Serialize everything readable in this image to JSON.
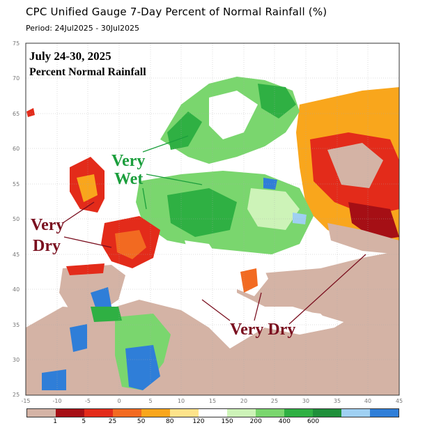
{
  "header": {
    "title": "CPC Unified Gauge 7-Day Percent of Normal Rainfall (%)",
    "period": "Period: 24Jul2025 - 30Jul2025"
  },
  "map": {
    "inset_title_line1": "July 24-30, 2025",
    "inset_title_line2": "Percent Normal Rainfall",
    "annotations": {
      "very_wet_1": "Very",
      "very_wet_2": "Wet",
      "very_dry_left_1": "Very",
      "very_dry_left_2": "Dry",
      "very_dry_bottom": "Very Dry"
    },
    "annotation_colors": {
      "wet": "#1b9e3c",
      "dry": "#7a0f1f"
    },
    "lon_ticks": [
      "-15",
      "-10",
      "-5",
      "0",
      "5",
      "10",
      "15",
      "20",
      "25",
      "30",
      "35",
      "40",
      "45"
    ],
    "lat_ticks": [
      "75",
      "70",
      "65",
      "60",
      "55",
      "50",
      "45",
      "40",
      "35",
      "30",
      "25"
    ]
  },
  "legend": {
    "labels": [
      "1",
      "5",
      "25",
      "50",
      "80",
      "120",
      "150",
      "200",
      "400",
      "600"
    ],
    "colors": [
      "#d4b3a5",
      "#a50f15",
      "#e32b1a",
      "#f26a21",
      "#f9a61c",
      "#fde38a",
      "#ffffff",
      "#cdf3b8",
      "#7ad66e",
      "#2fb043",
      "#1f8f3a",
      "#9fd0f2",
      "#2f7ed8"
    ]
  }
}
